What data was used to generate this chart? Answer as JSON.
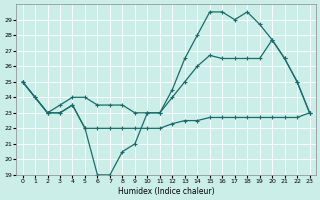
{
  "xlabel": "Humidex (Indice chaleur)",
  "ylabel": "",
  "bg_color": "#cceee8",
  "grid_color": "#ffffff",
  "line_color": "#1a6b6b",
  "xlim": [
    -0.5,
    23.5
  ],
  "ylim": [
    19,
    30
  ],
  "yticks": [
    19,
    20,
    21,
    22,
    23,
    24,
    25,
    26,
    27,
    28,
    29
  ],
  "xticks": [
    0,
    1,
    2,
    3,
    4,
    5,
    6,
    7,
    8,
    9,
    10,
    11,
    12,
    13,
    14,
    15,
    16,
    17,
    18,
    19,
    20,
    21,
    22,
    23
  ],
  "line1_x": [
    0,
    1,
    2,
    3,
    4,
    5,
    6,
    7,
    8,
    9,
    10,
    11,
    12,
    13,
    14,
    15,
    16,
    17,
    18,
    19,
    20,
    21,
    22,
    23
  ],
  "line1_y": [
    25,
    24,
    23,
    23,
    23.5,
    22,
    19,
    19,
    20.5,
    21,
    23,
    23,
    24.5,
    26.5,
    28,
    29.5,
    29.5,
    29,
    29.5,
    28.7,
    27.7,
    26.5,
    25,
    23
  ],
  "line2_x": [
    0,
    1,
    2,
    3,
    4,
    5,
    6,
    7,
    8,
    9,
    10,
    11,
    12,
    13,
    14,
    15,
    16,
    17,
    18,
    19,
    20,
    21,
    22,
    23
  ],
  "line2_y": [
    25,
    24,
    23,
    23.5,
    24,
    24,
    23.5,
    23.5,
    23.5,
    23,
    23,
    23,
    24,
    25,
    26,
    26.7,
    26.5,
    26.5,
    26.5,
    26.5,
    27.7,
    26.5,
    25,
    23
  ],
  "line3_x": [
    0,
    2,
    3,
    4,
    5,
    6,
    7,
    8,
    9,
    10,
    11,
    12,
    13,
    14,
    15,
    16,
    17,
    18,
    19,
    20,
    21,
    22,
    23
  ],
  "line3_y": [
    25,
    23,
    23,
    23.5,
    22,
    22,
    22,
    22,
    22,
    22,
    22,
    22.3,
    22.5,
    22.5,
    22.7,
    22.7,
    22.7,
    22.7,
    22.7,
    22.7,
    22.7,
    22.7,
    23
  ]
}
